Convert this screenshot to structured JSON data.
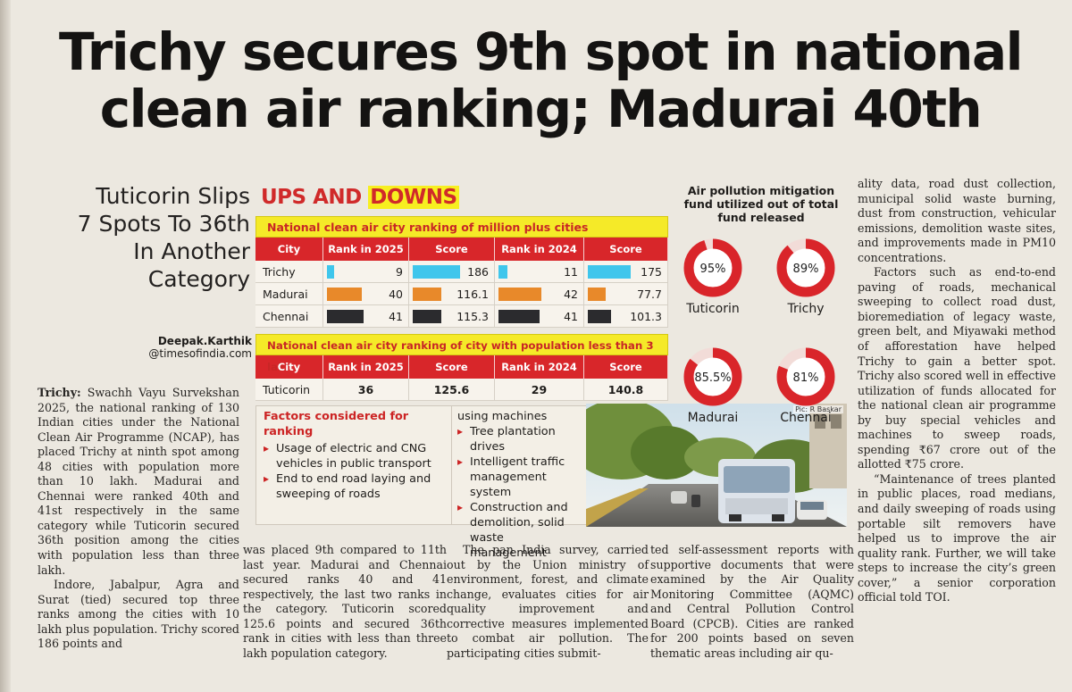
{
  "headline": [
    "Trichy secures 9th spot in national",
    "clean air ranking; Madurai 40th"
  ],
  "subhead": [
    "Tuticorin Slips",
    "7 Spots To 36th",
    "In Another",
    "Category"
  ],
  "byline": {
    "name": "Deepak.Karthik",
    "handle": "@timesofindia.com"
  },
  "graphic": {
    "title_part1": "UPS AND ",
    "title_part2": "DOWNS",
    "table1": {
      "caption": "National clean air city ranking of million plus cities",
      "headers": [
        "City",
        "Rank in 2025",
        "Score",
        "Rank in 2024",
        "Score"
      ],
      "rows": [
        {
          "city": "Trichy",
          "rank2025": "9",
          "score2025": "186",
          "rank2024": "11",
          "score2024": "175",
          "color": "#3fc6ec",
          "rank2025_fill": 0.15,
          "score2025_fill": 0.98,
          "rank2024_fill": 0.18,
          "score2024_fill": 0.92
        },
        {
          "city": "Madurai",
          "rank2025": "40",
          "score2025": "116.1",
          "rank2024": "42",
          "score2024": "77.7",
          "color": "#e8892a",
          "rank2025_fill": 0.72,
          "score2025_fill": 0.6,
          "rank2024_fill": 0.82,
          "score2024_fill": 0.38
        },
        {
          "city": "Chennai",
          "rank2025": "41",
          "score2025": "115.3",
          "rank2024": "41",
          "score2024": "101.3",
          "color": "#2b2b2e",
          "rank2025_fill": 0.75,
          "score2025_fill": 0.6,
          "rank2024_fill": 0.8,
          "score2024_fill": 0.5
        }
      ]
    },
    "table2": {
      "caption": "National clean air city ranking of city with population less than 3 lakh",
      "headers": [
        "City",
        "Rank in 2025",
        "Score",
        "Rank in 2024",
        "Score"
      ],
      "rows": [
        {
          "city": "Tuticorin",
          "rank2025": "36",
          "score2025": "125.6",
          "rank2024": "29",
          "score2024": "140.8"
        }
      ]
    },
    "factors": {
      "heading": "Factors considered for ranking",
      "items": [
        "Usage of electric and CNG vehicles in public transport",
        "End to end road laying and sweeping of roads"
      ],
      "continuation": "using machines",
      "items2": [
        "Tree plantation drives",
        "Intelligent traffic management system",
        "Construction and demolition, solid waste management"
      ]
    },
    "photo_credit": "Pic: R Baskar",
    "fund": {
      "title": [
        "Air pollution mitigation",
        "fund utilized out of total",
        "fund released"
      ],
      "cities": [
        {
          "city": "Tuticorin",
          "label": "95%",
          "value": 95
        },
        {
          "city": "Trichy",
          "label": "89%",
          "value": 89
        },
        {
          "city": "Madurai",
          "label": "85.5%",
          "value": 85.5
        },
        {
          "city": "Chennai",
          "label": "81%",
          "value": 81
        }
      ],
      "ring_color": "#d9252a",
      "ring_rest_color": "#f2dcd8"
    }
  },
  "article": {
    "col1": {
      "dateline": "Trichy:",
      "p1": " Swachh Vayu Survekshan 2025, the national ranking of 130 Indian cities under the National Clean Air Programme (NCAP), has placed Trichy at ninth spot among 48 cities with population more than 10 lakh. Madurai and Chennai were ranked 40th and 41st respectively in the same category while Tuticorin secured 36th position among the cities with population less than three lakh.",
      "p2": "Indore, Jabalpur, Agra and Surat (tied) secured top three ranks among the cities with 10 lakh plus population. Trichy scored 186 points and"
    },
    "col2": "was placed 9th compared to 11th last year. Madurai and Chennai secured ranks 40 and 41 respectively, the last two ranks in the category. Tuticorin scored 125.6 points and secured 36th rank in cities with less than three lakh population category.",
    "col3": "The pan India survey, carried out by the Union ministry of environment, forest, and climate change, evaluates cities for air quality improvement and corrective measures implemented to combat air pollution. The participating cities submit-",
    "col4": "ted self-assessment reports with supportive documents that were examined by the Air Quality Monitoring Committee (AQMC) and Central Pollution Control Board (CPCB). Cities are ranked for 200 points based on seven thematic areas including air qu-",
    "col5": {
      "p1": "ality data, road dust collection, municipal solid waste burning, dust from construction, vehicular emissions, demolition waste sites, and improvements made in PM10 concentrations.",
      "p2": "Factors such as end-to-end paving of roads, mechanical sweeping to collect road dust, bioremediation of legacy waste, green belt, and Miyawaki method of afforestation have helped Trichy to gain a better spot. Trichy also scored well in effective utilization of funds allocated for the national clean air programme by buy special vehicles and machines to sweep roads, spending ₹67 crore out of the allotted ₹75 crore.",
      "p3": "“Maintenance of trees planted in public places, road medians, and daily sweeping of roads using portable silt removers have helped us to improve the air quality rank. Further, we will take steps to increase the city’s green cover,” a senior corporation official told TOI."
    }
  }
}
